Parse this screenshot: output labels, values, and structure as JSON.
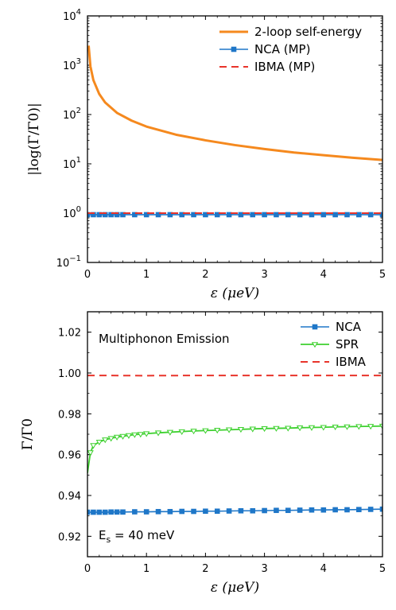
{
  "chart_data": [
    {
      "type": "line",
      "xlabel": "ε  (μeV)",
      "ylabel": "|log(Γ/Γ0)|",
      "yscale": "log",
      "xlim": [
        0,
        5
      ],
      "ylim": [
        0.1,
        10000
      ],
      "x_ticks": [
        "0",
        "1",
        "2",
        "3",
        "4",
        "5"
      ],
      "y_ticks": [
        {
          "base": "10",
          "exp": "−1"
        },
        {
          "base": "10",
          "exp": "0"
        },
        {
          "base": "10",
          "exp": "1"
        },
        {
          "base": "10",
          "exp": "2"
        },
        {
          "base": "10",
          "exp": "3"
        },
        {
          "base": "10",
          "exp": "4"
        }
      ],
      "legend_position": "top-right",
      "series": [
        {
          "name": "2-loop self-energy",
          "color": "#f5891e",
          "style": "solid-thick",
          "x": [
            0.02,
            0.05,
            0.1,
            0.2,
            0.3,
            0.5,
            0.75,
            1.0,
            1.5,
            2.0,
            2.5,
            3.0,
            3.5,
            4.0,
            4.5,
            5.0
          ],
          "y": [
            2500,
            950,
            500,
            260,
            175,
            108,
            75,
            57,
            39,
            30,
            24,
            20,
            17,
            15,
            13.3,
            12
          ]
        },
        {
          "name": "NCA (MP)",
          "color": "#1f77c8",
          "style": "solid-square-markers",
          "x": [
            0,
            0.1,
            0.2,
            0.3,
            0.4,
            0.5,
            0.6,
            0.8,
            1.0,
            1.2,
            1.4,
            1.6,
            1.8,
            2.0,
            2.2,
            2.4,
            2.6,
            2.8,
            3.0,
            3.2,
            3.4,
            3.6,
            3.8,
            4.0,
            4.2,
            4.4,
            4.6,
            4.8,
            5.0
          ],
          "y": [
            0.93,
            0.93,
            0.93,
            0.93,
            0.93,
            0.93,
            0.93,
            0.93,
            0.93,
            0.93,
            0.93,
            0.93,
            0.93,
            0.93,
            0.93,
            0.93,
            0.93,
            0.93,
            0.93,
            0.93,
            0.93,
            0.93,
            0.93,
            0.93,
            0.93,
            0.93,
            0.93,
            0.93,
            0.93
          ]
        },
        {
          "name": "IBMA (MP)",
          "color": "#e8342b",
          "style": "dashed",
          "x": [
            0,
            5
          ],
          "y": [
            1.0,
            1.0
          ]
        }
      ]
    },
    {
      "type": "line",
      "xlabel": "ε  (μeV)",
      "ylabel": "Γ/Γ0",
      "xlim": [
        0,
        5
      ],
      "ylim": [
        0.91,
        1.03
      ],
      "x_ticks": [
        "0",
        "1",
        "2",
        "3",
        "4",
        "5"
      ],
      "y_ticks": [
        "0.92",
        "0.94",
        "0.96",
        "0.98",
        "1.00",
        "1.02"
      ],
      "legend_position": "top-right",
      "annotations": {
        "title_text": "Multiphonon Emission",
        "es_text": "E",
        "es_sub": "s",
        "es_value": " = 40 meV"
      },
      "series": [
        {
          "name": "NCA",
          "color": "#1f77c8",
          "style": "solid-square-markers",
          "x": [
            0,
            0.1,
            0.2,
            0.3,
            0.4,
            0.5,
            0.6,
            0.8,
            1.0,
            1.2,
            1.4,
            1.6,
            1.8,
            2.0,
            2.2,
            2.4,
            2.6,
            2.8,
            3.0,
            3.2,
            3.4,
            3.6,
            3.8,
            4.0,
            4.2,
            4.4,
            4.6,
            4.8,
            5.0
          ],
          "y": [
            0.9318,
            0.9318,
            0.9318,
            0.9318,
            0.9319,
            0.9319,
            0.9319,
            0.932,
            0.932,
            0.9321,
            0.9321,
            0.9322,
            0.9322,
            0.9323,
            0.9323,
            0.9324,
            0.9325,
            0.9325,
            0.9326,
            0.9327,
            0.9327,
            0.9328,
            0.9329,
            0.9329,
            0.933,
            0.933,
            0.9331,
            0.9332,
            0.9333
          ]
        },
        {
          "name": "SPR",
          "color": "#3ed12f",
          "style": "solid-triangle-markers",
          "x": [
            0.0,
            0.02,
            0.05,
            0.1,
            0.2,
            0.3,
            0.4,
            0.5,
            0.6,
            0.7,
            0.8,
            0.9,
            1.0,
            1.2,
            1.4,
            1.6,
            1.8,
            2.0,
            2.2,
            2.4,
            2.6,
            2.8,
            3.0,
            3.2,
            3.4,
            3.6,
            3.8,
            4.0,
            4.2,
            4.4,
            4.6,
            4.8,
            5.0
          ],
          "y": [
            0.951,
            0.955,
            0.961,
            0.9645,
            0.9662,
            0.9673,
            0.968,
            0.9686,
            0.969,
            0.9694,
            0.9698,
            0.97,
            0.9703,
            0.9707,
            0.971,
            0.9713,
            0.9716,
            0.9718,
            0.972,
            0.9722,
            0.9724,
            0.9726,
            0.9728,
            0.9729,
            0.973,
            0.9732,
            0.9733,
            0.9734,
            0.9736,
            0.9737,
            0.9738,
            0.9739,
            0.974
          ]
        },
        {
          "name": "IBMA",
          "color": "#e8342b",
          "style": "dashed",
          "x": [
            0,
            1,
            2,
            3,
            4,
            5
          ],
          "y": [
            0.9988,
            0.9987,
            0.9988,
            0.9988,
            0.9988,
            0.9988
          ]
        }
      ]
    }
  ]
}
